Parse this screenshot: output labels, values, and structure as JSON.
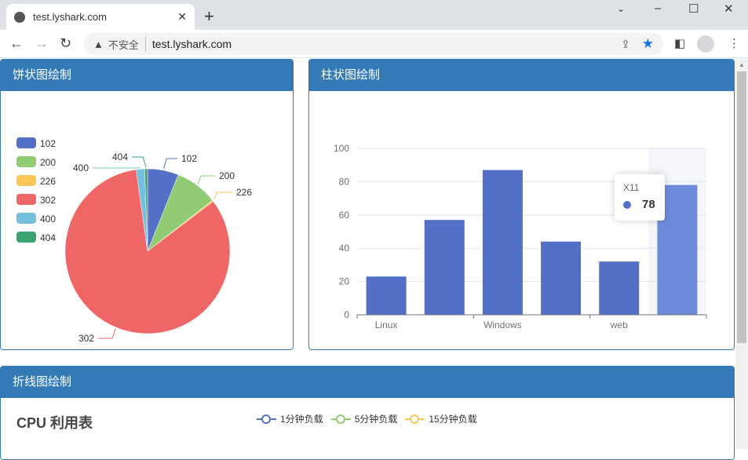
{
  "browser": {
    "tab_title": "test.lyshark.com",
    "insecure_label": "不安全",
    "url": "test.lyshark.com",
    "new_tab": "+",
    "close": "✕"
  },
  "panels": {
    "pie_title": "饼状图绘制",
    "bar_title": "柱状图绘制",
    "line_title": "折线图绘制"
  },
  "chart_data": [
    {
      "type": "pie",
      "legend_position": "top-left",
      "categories": [
        "102",
        "200",
        "226",
        "302",
        "400",
        "404"
      ],
      "values": [
        22,
        30,
        1,
        300,
        6,
        2
      ],
      "colors": [
        "#5470c6",
        "#91cc75",
        "#fac858",
        "#ee6666",
        "#73c0de",
        "#3ba272"
      ]
    },
    {
      "type": "bar",
      "categories": [
        "Linux",
        "",
        "Windows",
        "",
        "web",
        "X11"
      ],
      "visible_tick_labels": [
        "Linux",
        "Windows",
        "web"
      ],
      "values": [
        23,
        57,
        87,
        44,
        32,
        78
      ],
      "ylim": [
        0,
        100
      ],
      "yticks": [
        0,
        20,
        40,
        60,
        80,
        100
      ],
      "grid": true,
      "color": "#5470c6",
      "highlight_color": "#6e8bdb",
      "tooltip": {
        "name": "X11",
        "value": "78"
      }
    },
    {
      "type": "line",
      "title": "CPU 利用表",
      "legend_position": "top",
      "series": [
        {
          "name": "1分钟负载",
          "color": "#5470c6"
        },
        {
          "name": "5分钟负载",
          "color": "#91cc75"
        },
        {
          "name": "15分钟负载",
          "color": "#fac858"
        }
      ]
    }
  ]
}
